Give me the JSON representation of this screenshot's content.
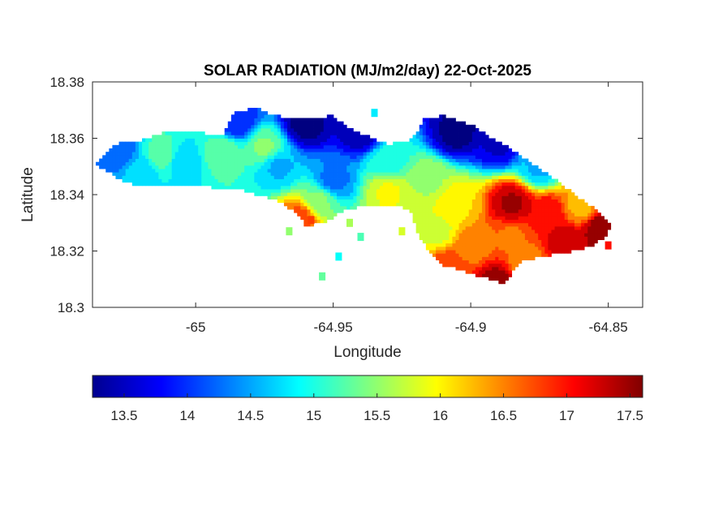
{
  "chart_data": {
    "type": "heatmap",
    "title": "SOLAR RADIATION (MJ/m2/day) 22-Oct-2025",
    "xlabel": "Longitude",
    "ylabel": "Latitude",
    "xlim": [
      -65.0375,
      -64.8375
    ],
    "ylim": [
      18.3,
      18.38
    ],
    "xticks": [
      -65,
      -64.95,
      -64.9,
      -64.85
    ],
    "xtick_labels": [
      "-65",
      "-64.95",
      "-64.9",
      "-64.85"
    ],
    "yticks": [
      18.3,
      18.32,
      18.34,
      18.36,
      18.38
    ],
    "ytick_labels": [
      "18.3",
      "18.32",
      "18.34",
      "18.36",
      "18.38"
    ],
    "colormap": "jet",
    "clim": [
      13.25,
      17.6
    ],
    "colorbar": {
      "orientation": "horizontal",
      "location": "below",
      "ticks": [
        13.5,
        14,
        14.5,
        15,
        15.5,
        16,
        16.5,
        17,
        17.5
      ],
      "tick_labels": [
        "13.5",
        "14",
        "14.5",
        "15",
        "15.5",
        "16",
        "16.5",
        "17",
        "17.5"
      ]
    },
    "grid": false,
    "island_outline": [
      [
        -65.0365,
        18.351
      ],
      [
        -65.033,
        18.354
      ],
      [
        -65.03,
        18.358
      ],
      [
        -65.02,
        18.359
      ],
      [
        -65.012,
        18.362
      ],
      [
        -65.005,
        18.363
      ],
      [
        -64.998,
        18.362
      ],
      [
        -64.99,
        18.361
      ],
      [
        -64.986,
        18.369
      ],
      [
        -64.978,
        18.371
      ],
      [
        -64.972,
        18.368
      ],
      [
        -64.96,
        18.367
      ],
      [
        -64.95,
        18.368
      ],
      [
        -64.945,
        18.364
      ],
      [
        -64.938,
        18.361
      ],
      [
        -64.93,
        18.358
      ],
      [
        -64.923,
        18.359
      ],
      [
        -64.919,
        18.363
      ],
      [
        -64.917,
        18.367
      ],
      [
        -64.91,
        18.368
      ],
      [
        -64.9,
        18.365
      ],
      [
        -64.892,
        18.36
      ],
      [
        -64.885,
        18.356
      ],
      [
        -64.878,
        18.351
      ],
      [
        -64.87,
        18.346
      ],
      [
        -64.862,
        18.34
      ],
      [
        -64.855,
        18.335
      ],
      [
        -64.849,
        18.33
      ],
      [
        -64.85,
        18.326
      ],
      [
        -64.856,
        18.322
      ],
      [
        -64.862,
        18.32
      ],
      [
        -64.868,
        18.319
      ],
      [
        -64.875,
        18.318
      ],
      [
        -64.882,
        18.316
      ],
      [
        -64.885,
        18.312
      ],
      [
        -64.888,
        18.308
      ],
      [
        -64.893,
        18.31
      ],
      [
        -64.9,
        18.312
      ],
      [
        -64.91,
        18.315
      ],
      [
        -64.915,
        18.32
      ],
      [
        -64.92,
        18.327
      ],
      [
        -64.921,
        18.333
      ],
      [
        -64.925,
        18.336
      ],
      [
        -64.935,
        18.336
      ],
      [
        -64.945,
        18.335
      ],
      [
        -64.953,
        18.33
      ],
      [
        -64.96,
        18.329
      ],
      [
        -64.963,
        18.333
      ],
      [
        -64.97,
        18.338
      ],
      [
        -64.985,
        18.342
      ],
      [
        -65.0,
        18.343
      ],
      [
        -65.015,
        18.343
      ],
      [
        -65.025,
        18.344
      ],
      [
        -65.03,
        18.347
      ]
    ],
    "field_centers": [
      {
        "lon": -64.96,
        "lat": 18.365,
        "value": 13.3
      },
      {
        "lon": -64.94,
        "lat": 18.362,
        "value": 13.5
      },
      {
        "lon": -64.985,
        "lat": 18.366,
        "value": 13.9
      },
      {
        "lon": -64.905,
        "lat": 18.362,
        "value": 13.3
      },
      {
        "lon": -64.89,
        "lat": 18.358,
        "value": 13.6
      },
      {
        "lon": -64.875,
        "lat": 18.35,
        "value": 14.6
      },
      {
        "lon": -64.93,
        "lat": 18.352,
        "value": 15.0
      },
      {
        "lon": -64.95,
        "lat": 18.345,
        "value": 14.3
      },
      {
        "lon": -64.97,
        "lat": 18.35,
        "value": 14.6
      },
      {
        "lon": -64.975,
        "lat": 18.357,
        "value": 15.4
      },
      {
        "lon": -64.99,
        "lat": 18.355,
        "value": 15.3
      },
      {
        "lon": -65.005,
        "lat": 18.352,
        "value": 14.7
      },
      {
        "lon": -65.012,
        "lat": 18.354,
        "value": 15.3
      },
      {
        "lon": -65.028,
        "lat": 18.355,
        "value": 14.2
      },
      {
        "lon": -65.02,
        "lat": 18.348,
        "value": 14.7
      },
      {
        "lon": -64.955,
        "lat": 18.338,
        "value": 15.4
      },
      {
        "lon": -64.962,
        "lat": 18.332,
        "value": 16.7
      },
      {
        "lon": -64.93,
        "lat": 18.341,
        "value": 15.9
      },
      {
        "lon": -64.915,
        "lat": 18.345,
        "value": 15.6
      },
      {
        "lon": -64.905,
        "lat": 18.337,
        "value": 16.1
      },
      {
        "lon": -64.912,
        "lat": 18.327,
        "value": 15.8
      },
      {
        "lon": -64.9,
        "lat": 18.322,
        "value": 16.5
      },
      {
        "lon": -64.885,
        "lat": 18.325,
        "value": 16.6
      },
      {
        "lon": -64.885,
        "lat": 18.337,
        "value": 17.4
      },
      {
        "lon": -64.872,
        "lat": 18.333,
        "value": 17.1
      },
      {
        "lon": -64.86,
        "lat": 18.336,
        "value": 16.3
      },
      {
        "lon": -64.852,
        "lat": 18.328,
        "value": 17.6
      },
      {
        "lon": -64.865,
        "lat": 18.323,
        "value": 17.3
      },
      {
        "lon": -64.88,
        "lat": 18.315,
        "value": 16.4
      },
      {
        "lon": -64.89,
        "lat": 18.309,
        "value": 17.5
      },
      {
        "lon": -64.908,
        "lat": 18.315,
        "value": 16.8
      }
    ],
    "offshore_patches": [
      {
        "lon": -64.958,
        "lat": 18.331,
        "value": 16.8
      },
      {
        "lon": -64.94,
        "lat": 18.325,
        "value": 15.2
      },
      {
        "lon": -64.948,
        "lat": 18.318,
        "value": 14.9
      },
      {
        "lon": -64.954,
        "lat": 18.311,
        "value": 15.3
      },
      {
        "lon": -64.966,
        "lat": 18.327,
        "value": 15.5
      },
      {
        "lon": -64.85,
        "lat": 18.322,
        "value": 17.0
      },
      {
        "lon": -64.935,
        "lat": 18.369,
        "value": 14.8
      },
      {
        "lon": -64.925,
        "lat": 18.327,
        "value": 15.8
      },
      {
        "lon": -64.944,
        "lat": 18.33,
        "value": 15.6
      }
    ]
  }
}
